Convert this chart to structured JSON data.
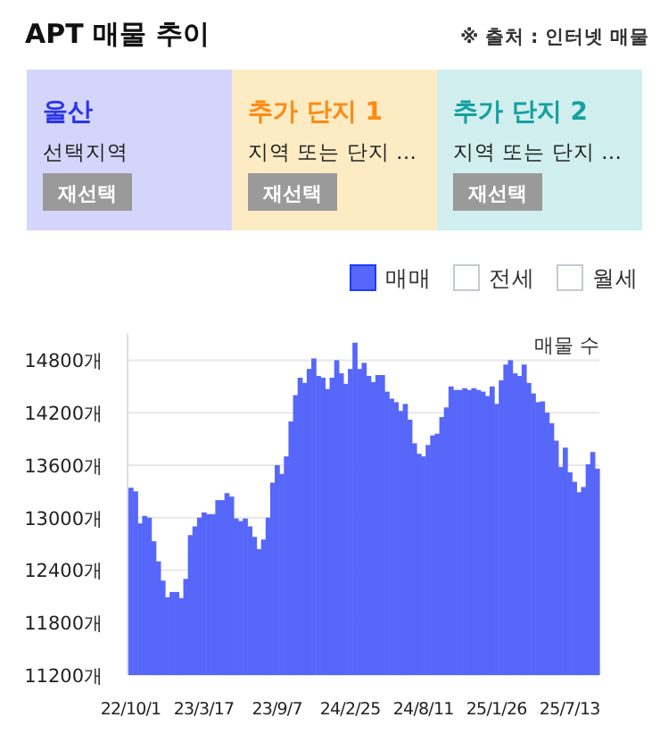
{
  "chart_data": {
    "type": "bar",
    "title": "APT 매물 추이",
    "ylabel": "매물 수",
    "annotations": [
      "※ 출처 : 인터넷 매물",
      "울산",
      "선택지역",
      "재선택",
      "추가 단지 1",
      "지역 또는 단지 …",
      "재선택",
      "추가 단지 2",
      "지역 또는 단지 …",
      "재선택",
      "전세",
      "월세"
    ],
    "categories": [
      "22/10/1",
      null,
      null,
      null,
      null,
      null,
      null,
      null,
      null,
      null,
      null,
      null,
      null,
      null,
      null,
      null,
      "23/3/17",
      null,
      null,
      null,
      null,
      null,
      null,
      null,
      null,
      null,
      null,
      null,
      null,
      null,
      null,
      null,
      "23/9/7",
      null,
      null,
      null,
      null,
      null,
      null,
      null,
      null,
      null,
      null,
      null,
      null,
      null,
      null,
      null,
      "24/2/25",
      null,
      null,
      null,
      null,
      null,
      null,
      null,
      null,
      null,
      null,
      null,
      null,
      null,
      null,
      null,
      "24/8/11",
      null,
      null,
      null,
      null,
      null,
      null,
      null,
      null,
      null,
      null,
      null,
      null,
      null,
      null,
      null,
      "25/1/26",
      null,
      null,
      null,
      null,
      null,
      null,
      null,
      null,
      null,
      null,
      null,
      null,
      null,
      null,
      null,
      "25/7/13",
      null,
      null,
      null,
      null,
      null,
      null
    ],
    "series": [
      {
        "name": "매매",
        "color": "#5767fa",
        "values": [
          13342,
          13300,
          12934,
          13020,
          13000,
          12730,
          12500,
          12280,
          12090,
          12150,
          12150,
          12080,
          12300,
          12800,
          12900,
          13000,
          13060,
          13040,
          13040,
          13200,
          13200,
          13280,
          13240,
          12990,
          12960,
          12990,
          12900,
          12780,
          12640,
          12750,
          13000,
          13400,
          13600,
          13500,
          13700,
          14100,
          14400,
          14600,
          14540,
          14700,
          14820,
          14620,
          14600,
          14470,
          14600,
          14800,
          14650,
          14530,
          14700,
          15000,
          14700,
          14770,
          14620,
          14550,
          14630,
          14630,
          14440,
          14360,
          14320,
          14220,
          14300,
          14120,
          13850,
          13730,
          13700,
          13830,
          13940,
          13960,
          14150,
          14260,
          14500,
          14460,
          14460,
          14480,
          14460,
          14480,
          14460,
          14440,
          14390,
          14500,
          14300,
          14570,
          14750,
          14800,
          14650,
          14620,
          14750,
          14540,
          14420,
          14320,
          14330,
          14200,
          14080,
          13880,
          13580,
          13800,
          13520,
          13410,
          13290,
          13350,
          13610,
          13750,
          13560
        ]
      }
    ],
    "ylim": [
      11200,
      15100
    ],
    "yticks": [
      {
        "value": 11200,
        "label": "11200개"
      },
      {
        "value": 11800,
        "label": "11800개"
      },
      {
        "value": 12400,
        "label": "12400개"
      },
      {
        "value": 13000,
        "label": "13000개"
      },
      {
        "value": 13600,
        "label": "13600개"
      },
      {
        "value": 14200,
        "label": "14200개"
      },
      {
        "value": 14800,
        "label": "14800개"
      }
    ],
    "grid": "y",
    "legend": "top right"
  }
}
